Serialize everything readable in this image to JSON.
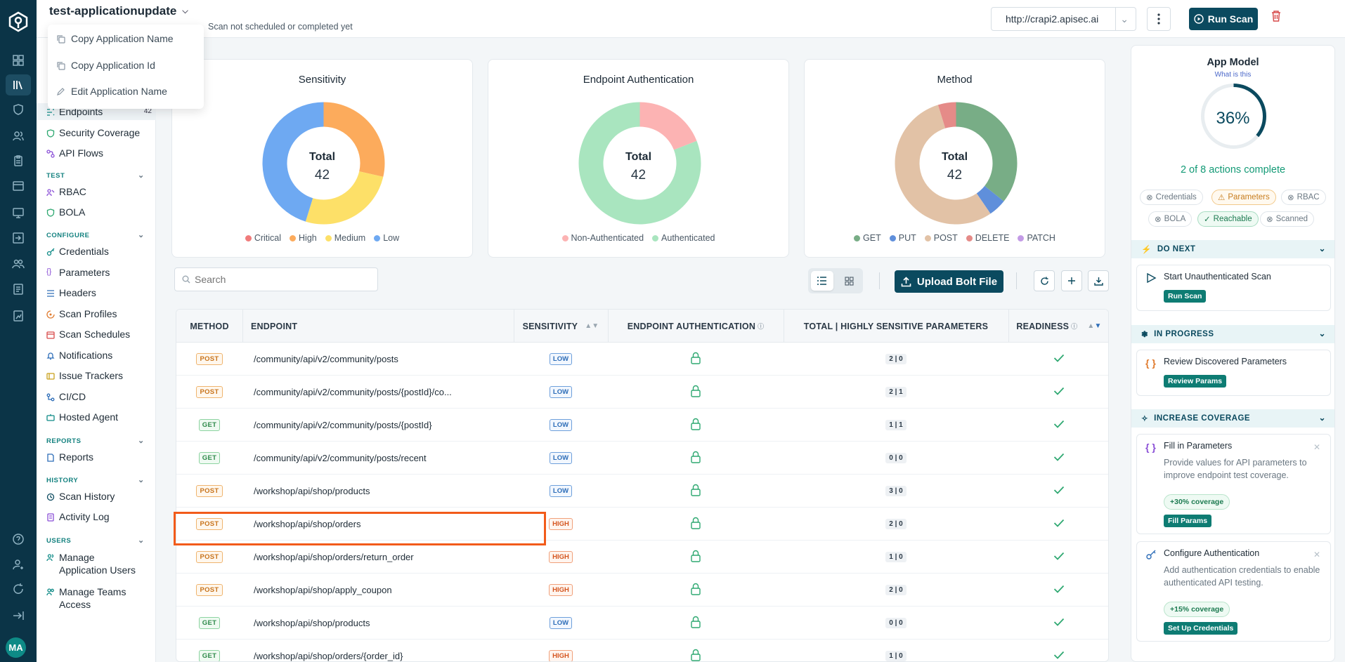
{
  "app": {
    "title": "test-applicationupdate",
    "scan_status": "Scan not scheduled or completed yet",
    "url": "http://crapi2.apisec.ai",
    "run_scan": "Run Scan",
    "user_initials": "MA"
  },
  "app_menu": [
    "Copy Application Name",
    "Copy Application Id",
    "Edit Application Name"
  ],
  "sidebar": {
    "endpoints": {
      "label": "Endpoints",
      "count": "42"
    },
    "security_coverage": "Security Coverage",
    "api_flows": "API Flows",
    "sections": {
      "test": "TEST",
      "configure": "CONFIGURE",
      "reports": "REPORTS",
      "history": "HISTORY",
      "users": "USERS"
    },
    "test": [
      "RBAC",
      "BOLA"
    ],
    "configure": [
      "Credentials",
      "Parameters",
      "Headers",
      "Scan Profiles",
      "Scan Schedules",
      "Notifications",
      "Issue Trackers",
      "CI/CD",
      "Hosted Agent"
    ],
    "reports": [
      "Reports"
    ],
    "history": [
      "Scan History",
      "Activity Log"
    ],
    "users": [
      "Manage Application Users",
      "Manage Teams Access"
    ]
  },
  "charts": {
    "total_label": "Total",
    "total_value": "42"
  },
  "chart_data": [
    {
      "type": "pie",
      "title": "Sensitivity",
      "categories": [
        "Critical",
        "High",
        "Medium",
        "Low"
      ],
      "values": [
        0,
        12,
        11,
        19
      ],
      "colors": [
        "#f07b7b",
        "#fcab5c",
        "#fde068",
        "#6ea9f2"
      ]
    },
    {
      "type": "pie",
      "title": "Endpoint Authentication",
      "categories": [
        "Non-Authenticated",
        "Authenticated"
      ],
      "values": [
        8,
        34
      ],
      "colors": [
        "#fcb3b3",
        "#a9e5bf"
      ]
    },
    {
      "type": "pie",
      "title": "Method",
      "categories": [
        "GET",
        "PUT",
        "POST",
        "DELETE",
        "PATCH"
      ],
      "values": [
        15,
        2,
        23,
        2,
        0
      ],
      "colors": [
        "#78ad86",
        "#5f8fdb",
        "#e2c2a6",
        "#e58b88",
        "#c39be6"
      ]
    }
  ],
  "toolbar": {
    "search_placeholder": "Search",
    "upload": "Upload Bolt File"
  },
  "table": {
    "headers": {
      "method": "METHOD",
      "endpoint": "ENDPOINT",
      "sensitivity": "SENSITIVITY",
      "auth": "ENDPOINT AUTHENTICATION",
      "params": "TOTAL | HIGHLY SENSITIVE PARAMETERS",
      "readiness": "READINESS"
    },
    "rows": [
      {
        "method": "POST",
        "endpoint": "/community/api/v2/community/posts",
        "sensitivity": "LOW",
        "params": "2 | 0"
      },
      {
        "method": "POST",
        "endpoint": "/community/api/v2/community/posts/{postId}/co...",
        "sensitivity": "LOW",
        "params": "2 | 1"
      },
      {
        "method": "GET",
        "endpoint": "/community/api/v2/community/posts/{postId}",
        "sensitivity": "LOW",
        "params": "1 | 1"
      },
      {
        "method": "GET",
        "endpoint": "/community/api/v2/community/posts/recent",
        "sensitivity": "LOW",
        "params": "0 | 0"
      },
      {
        "method": "POST",
        "endpoint": "/workshop/api/shop/products",
        "sensitivity": "LOW",
        "params": "3 | 0"
      },
      {
        "method": "POST",
        "endpoint": "/workshop/api/shop/orders",
        "sensitivity": "HIGH",
        "params": "2 | 0"
      },
      {
        "method": "POST",
        "endpoint": "/workshop/api/shop/orders/return_order",
        "sensitivity": "HIGH",
        "params": "1 | 0"
      },
      {
        "method": "POST",
        "endpoint": "/workshop/api/shop/apply_coupon",
        "sensitivity": "HIGH",
        "params": "2 | 0"
      },
      {
        "method": "GET",
        "endpoint": "/workshop/api/shop/products",
        "sensitivity": "LOW",
        "params": "0 | 0"
      },
      {
        "method": "GET",
        "endpoint": "/workshop/api/shop/orders/{order_id}",
        "sensitivity": "HIGH",
        "params": "1 | 0"
      }
    ]
  },
  "app_model": {
    "title": "App Model",
    "what_is_this": "What is this",
    "percent": "36%",
    "progress": 0.36,
    "actions": "2 of 8 actions complete",
    "chips": [
      "Credentials",
      "Parameters",
      "RBAC",
      "BOLA",
      "Reachable",
      "Scanned"
    ],
    "do_next": "DO NEXT",
    "in_progress": "IN PROGRESS",
    "increase_coverage": "INCREASE COVERAGE",
    "cards": {
      "unauth_scan": {
        "title": "Start Unauthenticated Scan",
        "button": "Run Scan"
      },
      "review_params": {
        "title": "Review Discovered Parameters",
        "button": "Review Params"
      },
      "fill_params": {
        "title": "Fill in Parameters",
        "desc": "Provide values for API parameters to improve endpoint test coverage.",
        "coverage": "+30% coverage",
        "button": "Fill Params"
      },
      "config_auth": {
        "title": "Configure Authentication",
        "desc": "Add authentication credentials to enable authenticated API testing.",
        "coverage": "+15% coverage",
        "button": "Set Up Credentials"
      }
    }
  }
}
